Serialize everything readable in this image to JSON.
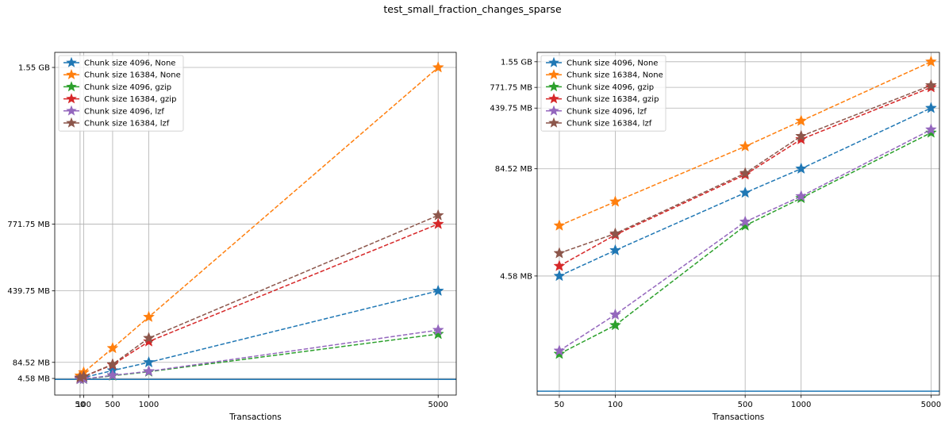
{
  "figure": {
    "title": "test_small_fraction_changes_sparse"
  },
  "chart_data": [
    {
      "type": "line",
      "xlabel": "Transactions",
      "ylabel": "",
      "y_scale": "linear",
      "x_ticks": [
        50,
        100,
        500,
        1000,
        5000
      ],
      "xlim": [
        -300,
        5250
      ],
      "y_ticks": [
        {
          "value": 4.58,
          "label": "4.58 MB"
        },
        {
          "value": 84.52,
          "label": "84.52 MB"
        },
        {
          "value": 439.75,
          "label": "439.75 MB"
        },
        {
          "value": 771.75,
          "label": "771.75 MB"
        },
        {
          "value": 1550,
          "label": "1.55 GB"
        }
      ],
      "ylim": [
        -78,
        1625
      ],
      "baseline": 0,
      "grid": true,
      "legend": "top-left",
      "x": [
        50,
        100,
        500,
        1000,
        5000
      ],
      "series": [
        {
          "name": "Chunk size 4096, None",
          "color": "#1f77b4",
          "values": [
            4.58,
            9.2,
            44.0,
            84.52,
            439.75
          ]
        },
        {
          "name": "Chunk size 16384, None",
          "color": "#ff7f0e",
          "values": [
            18.0,
            34.5,
            155.0,
            310.0,
            1550
          ]
        },
        {
          "name": "Chunk size 4096, gzip",
          "color": "#2ca02c",
          "values": [
            0.55,
            1.2,
            18.0,
            38.0,
            225.0
          ]
        },
        {
          "name": "Chunk size 16384, gzip",
          "color": "#d62728",
          "values": [
            6.0,
            14.0,
            72.0,
            188.0,
            771.75
          ]
        },
        {
          "name": "Chunk size 4096, lzf",
          "color": "#9467bd",
          "values": [
            0.6,
            1.6,
            20.0,
            40.0,
            245.0
          ]
        },
        {
          "name": "Chunk size 16384, lzf",
          "color": "#8c564b",
          "values": [
            8.5,
            14.5,
            75.0,
            205.0,
            815.0
          ]
        }
      ]
    },
    {
      "type": "line",
      "xlabel": "Transactions",
      "ylabel": "",
      "y_scale": "log",
      "x_scale": "log",
      "x_ticks": [
        50,
        100,
        500,
        1000,
        5000
      ],
      "xlim": [
        38,
        5550
      ],
      "y_ticks": [
        {
          "value": 4.58,
          "label": "4.58 MB"
        },
        {
          "value": 84.52,
          "label": "84.52 MB"
        },
        {
          "value": 439.75,
          "label": "439.75 MB"
        },
        {
          "value": 771.75,
          "label": "771.75 MB"
        },
        {
          "value": 1550,
          "label": "1.55 GB"
        }
      ],
      "ylim": [
        0.18,
        2000
      ],
      "baseline": 0.2,
      "grid": true,
      "legend": "top-left",
      "x": [
        50,
        100,
        500,
        1000,
        5000
      ],
      "series": [
        {
          "name": "Chunk size 4096, None",
          "color": "#1f77b4",
          "values": [
            4.58,
            9.2,
            44.0,
            84.52,
            439.75
          ]
        },
        {
          "name": "Chunk size 16384, None",
          "color": "#ff7f0e",
          "values": [
            18.0,
            34.5,
            155.0,
            310.0,
            1550
          ]
        },
        {
          "name": "Chunk size 4096, gzip",
          "color": "#2ca02c",
          "values": [
            0.55,
            1.2,
            18.0,
            38.0,
            225.0
          ]
        },
        {
          "name": "Chunk size 16384, gzip",
          "color": "#d62728",
          "values": [
            6.0,
            14.0,
            72.0,
            188.0,
            771.75
          ]
        },
        {
          "name": "Chunk size 4096, lzf",
          "color": "#9467bd",
          "values": [
            0.6,
            1.6,
            20.0,
            40.0,
            245.0
          ]
        },
        {
          "name": "Chunk size 16384, lzf",
          "color": "#8c564b",
          "values": [
            8.5,
            14.5,
            75.0,
            205.0,
            815.0
          ]
        }
      ]
    }
  ]
}
